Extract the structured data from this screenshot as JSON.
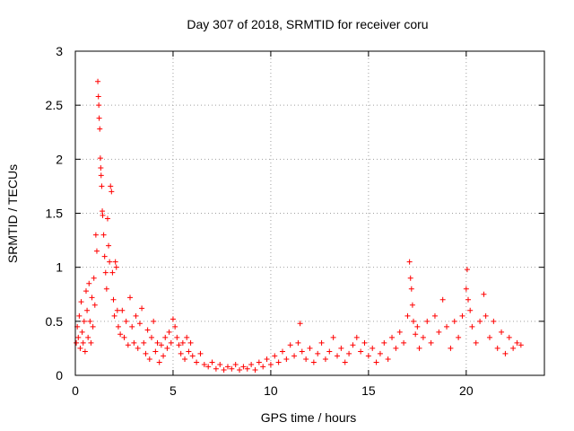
{
  "chart_data": {
    "type": "scatter",
    "title": "Day 307 of 2018, SRMTID for receiver coru",
    "xlabel": "GPS time / hours",
    "ylabel": "SRMTID / TECUs",
    "xlim": [
      0,
      24
    ],
    "ylim": [
      0,
      3
    ],
    "xticks": [
      0,
      5,
      10,
      15,
      20
    ],
    "yticks": [
      0,
      0.5,
      1,
      1.5,
      2,
      2.5,
      3
    ],
    "xtick_labels": [
      "0",
      "5",
      "10",
      "15",
      "20"
    ],
    "ytick_labels": [
      "0",
      "0.5",
      "1",
      "1.5",
      "2",
      "2.5",
      "3"
    ],
    "grid": true,
    "marker": "+",
    "color": "#ff0000",
    "series": [
      {
        "name": "SRMTID",
        "points": [
          [
            0.05,
            0.3
          ],
          [
            0.1,
            0.45
          ],
          [
            0.15,
            0.35
          ],
          [
            0.2,
            0.55
          ],
          [
            0.25,
            0.25
          ],
          [
            0.3,
            0.68
          ],
          [
            0.35,
            0.4
          ],
          [
            0.4,
            0.3
          ],
          [
            0.45,
            0.5
          ],
          [
            0.5,
            0.22
          ],
          [
            0.55,
            0.78
          ],
          [
            0.6,
            0.6
          ],
          [
            0.65,
            0.35
          ],
          [
            0.7,
            0.85
          ],
          [
            0.75,
            0.5
          ],
          [
            0.8,
            0.3
          ],
          [
            0.85,
            0.72
          ],
          [
            0.9,
            0.45
          ],
          [
            0.95,
            0.9
          ],
          [
            1.0,
            0.65
          ],
          [
            1.05,
            1.3
          ],
          [
            1.1,
            1.15
          ],
          [
            1.15,
            2.72
          ],
          [
            1.18,
            2.58
          ],
          [
            1.2,
            2.5
          ],
          [
            1.22,
            2.38
          ],
          [
            1.25,
            2.28
          ],
          [
            1.28,
            2.01
          ],
          [
            1.3,
            1.92
          ],
          [
            1.32,
            1.85
          ],
          [
            1.35,
            1.75
          ],
          [
            1.38,
            1.52
          ],
          [
            1.4,
            1.48
          ],
          [
            1.45,
            1.3
          ],
          [
            1.5,
            1.1
          ],
          [
            1.55,
            0.95
          ],
          [
            1.6,
            0.8
          ],
          [
            1.65,
            1.45
          ],
          [
            1.7,
            1.2
          ],
          [
            1.75,
            1.05
          ],
          [
            1.8,
            1.75
          ],
          [
            1.85,
            1.7
          ],
          [
            1.9,
            0.95
          ],
          [
            1.95,
            0.7
          ],
          [
            2.0,
            0.55
          ],
          [
            2.05,
            1.05
          ],
          [
            2.1,
            1.0
          ],
          [
            2.15,
            0.6
          ],
          [
            2.2,
            0.45
          ],
          [
            2.3,
            0.38
          ],
          [
            2.4,
            0.6
          ],
          [
            2.5,
            0.35
          ],
          [
            2.6,
            0.5
          ],
          [
            2.7,
            0.28
          ],
          [
            2.8,
            0.72
          ],
          [
            2.9,
            0.45
          ],
          [
            3.0,
            0.3
          ],
          [
            3.1,
            0.55
          ],
          [
            3.2,
            0.25
          ],
          [
            3.3,
            0.48
          ],
          [
            3.4,
            0.62
          ],
          [
            3.5,
            0.3
          ],
          [
            3.6,
            0.2
          ],
          [
            3.7,
            0.42
          ],
          [
            3.8,
            0.15
          ],
          [
            3.9,
            0.35
          ],
          [
            4.0,
            0.5
          ],
          [
            4.1,
            0.22
          ],
          [
            4.2,
            0.3
          ],
          [
            4.3,
            0.12
          ],
          [
            4.4,
            0.28
          ],
          [
            4.5,
            0.18
          ],
          [
            4.6,
            0.35
          ],
          [
            4.7,
            0.25
          ],
          [
            4.8,
            0.4
          ],
          [
            4.9,
            0.3
          ],
          [
            5.0,
            0.52
          ],
          [
            5.1,
            0.45
          ],
          [
            5.2,
            0.35
          ],
          [
            5.3,
            0.28
          ],
          [
            5.4,
            0.2
          ],
          [
            5.5,
            0.3
          ],
          [
            5.6,
            0.15
          ],
          [
            5.7,
            0.35
          ],
          [
            5.8,
            0.22
          ],
          [
            5.9,
            0.3
          ],
          [
            6.0,
            0.18
          ],
          [
            6.2,
            0.12
          ],
          [
            6.4,
            0.2
          ],
          [
            6.6,
            0.1
          ],
          [
            6.8,
            0.08
          ],
          [
            7.0,
            0.12
          ],
          [
            7.2,
            0.06
          ],
          [
            7.4,
            0.1
          ],
          [
            7.6,
            0.05
          ],
          [
            7.8,
            0.08
          ],
          [
            8.0,
            0.06
          ],
          [
            8.2,
            0.1
          ],
          [
            8.4,
            0.05
          ],
          [
            8.6,
            0.08
          ],
          [
            8.8,
            0.06
          ],
          [
            9.0,
            0.1
          ],
          [
            9.2,
            0.05
          ],
          [
            9.4,
            0.12
          ],
          [
            9.6,
            0.08
          ],
          [
            9.8,
            0.15
          ],
          [
            10.0,
            0.1
          ],
          [
            10.2,
            0.18
          ],
          [
            10.4,
            0.12
          ],
          [
            10.6,
            0.22
          ],
          [
            10.8,
            0.15
          ],
          [
            11.0,
            0.28
          ],
          [
            11.2,
            0.18
          ],
          [
            11.4,
            0.3
          ],
          [
            11.5,
            0.48
          ],
          [
            11.6,
            0.22
          ],
          [
            11.8,
            0.15
          ],
          [
            12.0,
            0.25
          ],
          [
            12.2,
            0.12
          ],
          [
            12.4,
            0.2
          ],
          [
            12.6,
            0.3
          ],
          [
            12.8,
            0.15
          ],
          [
            13.0,
            0.22
          ],
          [
            13.2,
            0.35
          ],
          [
            13.4,
            0.18
          ],
          [
            13.6,
            0.25
          ],
          [
            13.8,
            0.12
          ],
          [
            14.0,
            0.2
          ],
          [
            14.2,
            0.28
          ],
          [
            14.4,
            0.35
          ],
          [
            14.6,
            0.22
          ],
          [
            14.8,
            0.3
          ],
          [
            15.0,
            0.18
          ],
          [
            15.2,
            0.25
          ],
          [
            15.4,
            0.12
          ],
          [
            15.6,
            0.2
          ],
          [
            15.8,
            0.3
          ],
          [
            16.0,
            0.15
          ],
          [
            16.2,
            0.35
          ],
          [
            16.4,
            0.25
          ],
          [
            16.6,
            0.4
          ],
          [
            16.8,
            0.3
          ],
          [
            17.0,
            0.55
          ],
          [
            17.1,
            1.05
          ],
          [
            17.15,
            0.9
          ],
          [
            17.2,
            0.8
          ],
          [
            17.25,
            0.65
          ],
          [
            17.3,
            0.5
          ],
          [
            17.4,
            0.38
          ],
          [
            17.5,
            0.45
          ],
          [
            17.6,
            0.25
          ],
          [
            17.8,
            0.35
          ],
          [
            18.0,
            0.5
          ],
          [
            18.2,
            0.3
          ],
          [
            18.4,
            0.55
          ],
          [
            18.6,
            0.4
          ],
          [
            18.8,
            0.7
          ],
          [
            19.0,
            0.45
          ],
          [
            19.2,
            0.25
          ],
          [
            19.4,
            0.5
          ],
          [
            19.6,
            0.35
          ],
          [
            19.8,
            0.55
          ],
          [
            20.0,
            0.8
          ],
          [
            20.05,
            0.98
          ],
          [
            20.1,
            0.7
          ],
          [
            20.2,
            0.6
          ],
          [
            20.3,
            0.45
          ],
          [
            20.5,
            0.3
          ],
          [
            20.7,
            0.5
          ],
          [
            20.9,
            0.75
          ],
          [
            21.0,
            0.55
          ],
          [
            21.2,
            0.35
          ],
          [
            21.4,
            0.5
          ],
          [
            21.6,
            0.25
          ],
          [
            21.8,
            0.4
          ],
          [
            22.0,
            0.2
          ],
          [
            22.2,
            0.35
          ],
          [
            22.4,
            0.25
          ],
          [
            22.6,
            0.3
          ],
          [
            22.8,
            0.28
          ]
        ]
      }
    ]
  }
}
